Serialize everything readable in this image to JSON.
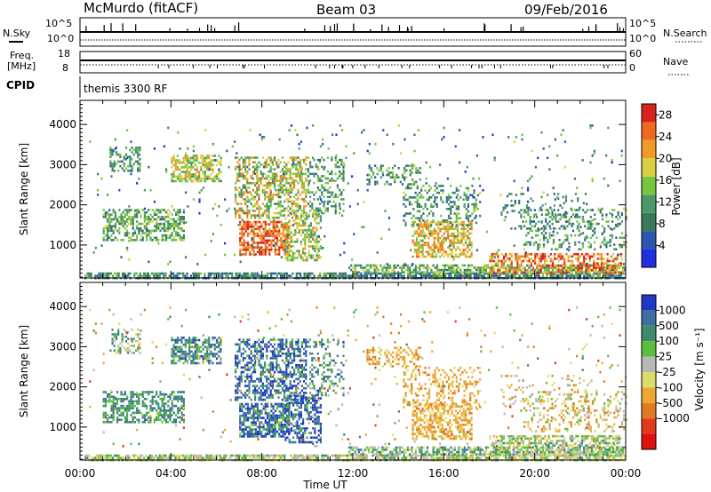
{
  "header": {
    "station": "McMurdo (fitACF)",
    "beam": "Beam 03",
    "date": "09/Feb/2016"
  },
  "summary": {
    "nsky_label": "N.Sky",
    "nsearch_label": "N.Search",
    "noise_ticks": [
      "10^5",
      "10^0"
    ],
    "freq_label_1": "Freq.",
    "freq_label_2": "[MHz]",
    "freq_ticks": [
      "18",
      "8"
    ],
    "nave_label": "Nave",
    "nave_ticks": [
      "60",
      "0"
    ],
    "cpid_label": "CPID",
    "cpid_value": "themis 3300 RF"
  },
  "colors": {
    "power_scale": [
      "#1f2fe0",
      "#2a56b0",
      "#3a7a5c",
      "#4a9a68",
      "#77c63e",
      "#d8d040",
      "#f09a28",
      "#ee6a20",
      "#d82418"
    ],
    "velocity_scale": [
      "#2038c8",
      "#3e6e9e",
      "#3e8a6c",
      "#5cbe3e",
      "#b8b8b8",
      "#dcdc6a",
      "#eea832",
      "#e27a22",
      "#e03a1e",
      "#e01010"
    ],
    "ground_scatter": "#9a9a9a"
  },
  "chart_data": [
    {
      "type": "heatmap",
      "panel": "power",
      "ylabel": "Slant Range [km]",
      "xlabel": "",
      "x_ticks": [
        "00:00",
        "04:00",
        "08:00",
        "12:00",
        "16:00",
        "20:00",
        "00:00"
      ],
      "y_ticks": [
        1000,
        2000,
        3000,
        4000
      ],
      "ylim": [
        180,
        4600
      ],
      "xlim_hours": [
        0,
        24
      ],
      "colorbar": {
        "label": "Power [dB]",
        "ticks": [
          "4",
          "8",
          "12",
          "16",
          "20",
          "24",
          "28"
        ],
        "range": [
          0,
          30
        ]
      },
      "regions": [
        {
          "t0": 0.2,
          "t1": 24.0,
          "r0": 180,
          "r1": 320,
          "v": 9,
          "dens": 0.75,
          "spread": 6
        },
        {
          "t0": 1.0,
          "t1": 4.6,
          "r0": 1100,
          "r1": 1900,
          "v": 12,
          "dens": 0.55,
          "spread": 6
        },
        {
          "t0": 1.3,
          "t1": 2.6,
          "r0": 2850,
          "r1": 3450,
          "v": 11,
          "dens": 0.4,
          "spread": 5
        },
        {
          "t0": 4.0,
          "t1": 6.2,
          "r0": 2600,
          "r1": 3250,
          "v": 17,
          "dens": 0.6,
          "spread": 6
        },
        {
          "t0": 6.8,
          "t1": 9.9,
          "r0": 1700,
          "r1": 3200,
          "v": 17,
          "dens": 0.5,
          "spread": 8
        },
        {
          "t0": 7.0,
          "t1": 9.2,
          "r0": 750,
          "r1": 1600,
          "v": 25,
          "dens": 0.7,
          "spread": 5
        },
        {
          "t0": 9.0,
          "t1": 10.6,
          "r0": 650,
          "r1": 1800,
          "v": 16,
          "dens": 0.5,
          "spread": 6
        },
        {
          "t0": 10.0,
          "t1": 11.6,
          "r0": 1800,
          "r1": 3200,
          "v": 11,
          "dens": 0.3,
          "spread": 6
        },
        {
          "t0": 11.8,
          "t1": 24.0,
          "r0": 320,
          "r1": 520,
          "v": 13,
          "dens": 0.65,
          "spread": 6
        },
        {
          "t0": 12.6,
          "t1": 15.0,
          "r0": 2500,
          "r1": 3000,
          "v": 11,
          "dens": 0.35,
          "spread": 6
        },
        {
          "t0": 14.6,
          "t1": 17.2,
          "r0": 700,
          "r1": 1600,
          "v": 20,
          "dens": 0.6,
          "spread": 7
        },
        {
          "t0": 14.2,
          "t1": 17.6,
          "r0": 1500,
          "r1": 2500,
          "v": 11,
          "dens": 0.3,
          "spread": 6
        },
        {
          "t0": 18.0,
          "t1": 23.8,
          "r0": 300,
          "r1": 800,
          "v": 24,
          "dens": 0.55,
          "spread": 6
        },
        {
          "t0": 18.5,
          "t1": 22.5,
          "r0": 1400,
          "r1": 2300,
          "v": 9,
          "dens": 0.12,
          "spread": 4
        },
        {
          "t0": 19.5,
          "t1": 24.0,
          "r0": 900,
          "r1": 1900,
          "v": 11,
          "dens": 0.25,
          "spread": 6
        },
        {
          "t0": 0.4,
          "t1": 24.0,
          "r0": 500,
          "r1": 4000,
          "v": 10,
          "dens": 0.02,
          "spread": 8
        }
      ]
    },
    {
      "type": "heatmap",
      "panel": "velocity",
      "ylabel": "Slant Range [km]",
      "xlabel": "Time UT",
      "x_ticks": [
        "00:00",
        "04:00",
        "08:00",
        "12:00",
        "16:00",
        "20:00",
        "00:00"
      ],
      "y_ticks": [
        1000,
        2000,
        3000,
        4000
      ],
      "ylim": [
        180,
        4600
      ],
      "xlim_hours": [
        0,
        24
      ],
      "colorbar": {
        "label": "Velocity [m s⁻¹]",
        "ticks": [
          "1000",
          "500",
          "100",
          "25",
          "-25",
          "-100",
          "-500",
          "-1000"
        ]
      },
      "regions": [
        {
          "t0": 0.2,
          "t1": 24.0,
          "r0": 180,
          "r1": 320,
          "v": 4,
          "dens": 0.75,
          "spread": 2
        },
        {
          "t0": 1.0,
          "t1": 4.6,
          "r0": 1100,
          "r1": 1900,
          "v": 2,
          "dens": 0.55,
          "spread": 1
        },
        {
          "t0": 1.3,
          "t1": 2.6,
          "r0": 2850,
          "r1": 3450,
          "v": 3,
          "dens": 0.4,
          "spread": 2
        },
        {
          "t0": 4.0,
          "t1": 6.2,
          "r0": 2600,
          "r1": 3250,
          "v": 2,
          "dens": 0.6,
          "spread": 2
        },
        {
          "t0": 6.8,
          "t1": 9.9,
          "r0": 1700,
          "r1": 3200,
          "v": 1,
          "dens": 0.5,
          "spread": 2
        },
        {
          "t0": 7.0,
          "t1": 9.2,
          "r0": 750,
          "r1": 1600,
          "v": 1,
          "dens": 0.7,
          "spread": 2
        },
        {
          "t0": 9.0,
          "t1": 10.6,
          "r0": 650,
          "r1": 1800,
          "v": 1,
          "dens": 0.5,
          "spread": 2
        },
        {
          "t0": 10.0,
          "t1": 11.6,
          "r0": 1800,
          "r1": 3200,
          "v": 2,
          "dens": 0.3,
          "spread": 2
        },
        {
          "t0": 11.8,
          "t1": 24.0,
          "r0": 320,
          "r1": 520,
          "v": 3,
          "dens": 0.65,
          "spread": 2
        },
        {
          "t0": 12.6,
          "t1": 15.0,
          "r0": 2500,
          "r1": 3000,
          "v": 6,
          "dens": 0.35,
          "spread": 1
        },
        {
          "t0": 14.6,
          "t1": 17.2,
          "r0": 700,
          "r1": 1600,
          "v": 6,
          "dens": 0.6,
          "spread": 1
        },
        {
          "t0": 14.2,
          "t1": 17.6,
          "r0": 1500,
          "r1": 2500,
          "v": 6,
          "dens": 0.3,
          "spread": 1
        },
        {
          "t0": 18.0,
          "t1": 23.8,
          "r0": 300,
          "r1": 800,
          "v": 4,
          "dens": 0.55,
          "spread": 2
        },
        {
          "t0": 18.5,
          "t1": 22.5,
          "r0": 1400,
          "r1": 2300,
          "v": 5,
          "dens": 0.12,
          "spread": 2
        },
        {
          "t0": 19.5,
          "t1": 24.0,
          "r0": 900,
          "r1": 1900,
          "v": 5,
          "dens": 0.25,
          "spread": 2
        },
        {
          "t0": 0.4,
          "t1": 24.0,
          "r0": 500,
          "r1": 4000,
          "v": 5,
          "dens": 0.02,
          "spread": 3
        }
      ]
    }
  ]
}
